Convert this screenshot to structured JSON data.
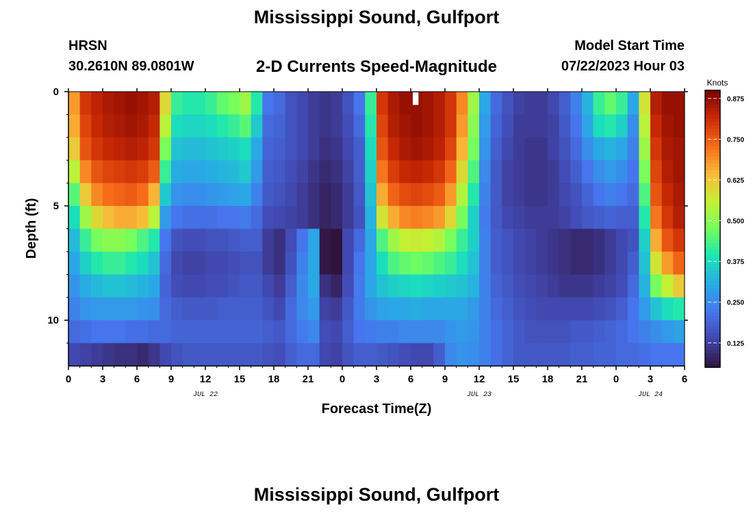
{
  "header": {
    "title": "Mississippi Sound, Gulfport",
    "station": "HRSN",
    "coordinates": "30.2610N  89.0801W",
    "subtitle": "2-D Currents Speed-Magnitude",
    "model_start_label": "Model Start Time",
    "model_start_value": "07/22/2023 Hour 03"
  },
  "footer": {
    "title": "Mississippi Sound, Gulfport"
  },
  "chart_data": {
    "type": "heatmap",
    "title": "2-D Currents Speed-Magnitude",
    "xlabel": "Forecast Time(Z)",
    "ylabel": "Depth (ft)",
    "x_unit": "forecast hour",
    "xlim": [
      0,
      54
    ],
    "ylim": [
      0,
      12
    ],
    "y_inverted": true,
    "x_ticks": [
      0,
      3,
      6,
      9,
      12,
      15,
      18,
      21,
      24,
      27,
      30,
      33,
      36,
      39,
      42,
      45,
      48,
      51,
      54
    ],
    "x_tick_labels": [
      "0",
      "3",
      "6",
      "9",
      "12",
      "15",
      "18",
      "21",
      "0",
      "3",
      "6",
      "9",
      "12",
      "15",
      "18",
      "21",
      "0",
      "3",
      "6"
    ],
    "date_labels": [
      {
        "x": 12,
        "text": "JUL 22"
      },
      {
        "x": 36,
        "text": "JUL 23"
      },
      {
        "x": 51,
        "text": "JUL 24"
      }
    ],
    "y_ticks": [
      0,
      5,
      10
    ],
    "y_tick_labels": [
      "0",
      "5",
      "10"
    ],
    "colorbar": {
      "label": "Knots",
      "range": [
        0.05,
        0.9
      ],
      "ticks": [
        0.125,
        0.25,
        0.375,
        0.5,
        0.625,
        0.75,
        0.875
      ],
      "tick_labels": [
        "0.125",
        "0.250",
        "0.375",
        "0.500",
        "0.625",
        "0.750",
        "0.875"
      ]
    },
    "depth_rows": [
      0.5,
      1.5,
      2.5,
      3.5,
      4.5,
      5.5,
      6.5,
      7.5,
      8.5,
      9.5,
      10.5,
      11.5
    ],
    "hours": [
      0,
      1,
      2,
      3,
      4,
      5,
      6,
      7,
      8,
      9,
      10,
      11,
      12,
      13,
      14,
      15,
      16,
      17,
      18,
      19,
      20,
      21,
      22,
      23,
      24,
      25,
      26,
      27,
      28,
      29,
      30,
      31,
      32,
      33,
      34,
      35,
      36,
      37,
      38,
      39,
      40,
      41,
      42,
      43,
      44,
      45,
      46,
      47,
      48,
      49,
      50,
      51,
      52,
      53
    ],
    "values": [
      [
        0.68,
        0.8,
        0.83,
        0.85,
        0.86,
        0.87,
        0.86,
        0.84,
        0.6,
        0.42,
        0.4,
        0.4,
        0.42,
        0.46,
        0.48,
        0.52,
        0.4,
        0.22,
        0.2,
        0.16,
        0.14,
        0.12,
        0.11,
        0.12,
        0.16,
        0.22,
        0.42,
        0.8,
        0.85,
        0.87,
        0.87,
        0.86,
        0.84,
        0.8,
        0.7,
        0.52,
        0.3,
        0.2,
        0.16,
        0.13,
        0.12,
        0.12,
        0.14,
        0.18,
        0.24,
        0.32,
        0.42,
        0.46,
        0.42,
        0.3,
        0.58,
        0.84,
        0.87,
        0.87
      ],
      [
        0.66,
        0.78,
        0.82,
        0.84,
        0.85,
        0.86,
        0.85,
        0.82,
        0.55,
        0.38,
        0.37,
        0.37,
        0.38,
        0.4,
        0.42,
        0.45,
        0.35,
        0.2,
        0.19,
        0.16,
        0.14,
        0.12,
        0.11,
        0.12,
        0.15,
        0.2,
        0.4,
        0.78,
        0.84,
        0.86,
        0.87,
        0.86,
        0.84,
        0.8,
        0.68,
        0.5,
        0.28,
        0.19,
        0.15,
        0.12,
        0.12,
        0.12,
        0.13,
        0.17,
        0.22,
        0.3,
        0.38,
        0.4,
        0.36,
        0.26,
        0.55,
        0.82,
        0.86,
        0.87
      ],
      [
        0.62,
        0.76,
        0.8,
        0.82,
        0.83,
        0.84,
        0.83,
        0.8,
        0.48,
        0.34,
        0.33,
        0.33,
        0.34,
        0.35,
        0.36,
        0.38,
        0.3,
        0.19,
        0.18,
        0.16,
        0.14,
        0.12,
        0.1,
        0.11,
        0.14,
        0.18,
        0.38,
        0.76,
        0.82,
        0.85,
        0.86,
        0.85,
        0.83,
        0.78,
        0.65,
        0.48,
        0.27,
        0.18,
        0.14,
        0.12,
        0.11,
        0.11,
        0.13,
        0.16,
        0.2,
        0.26,
        0.3,
        0.32,
        0.3,
        0.24,
        0.52,
        0.8,
        0.85,
        0.86
      ],
      [
        0.55,
        0.7,
        0.76,
        0.78,
        0.79,
        0.8,
        0.79,
        0.75,
        0.42,
        0.31,
        0.3,
        0.3,
        0.31,
        0.32,
        0.33,
        0.35,
        0.28,
        0.18,
        0.17,
        0.15,
        0.13,
        0.11,
        0.09,
        0.1,
        0.13,
        0.18,
        0.36,
        0.72,
        0.79,
        0.82,
        0.83,
        0.82,
        0.8,
        0.74,
        0.6,
        0.44,
        0.25,
        0.17,
        0.13,
        0.12,
        0.11,
        0.11,
        0.12,
        0.15,
        0.18,
        0.22,
        0.26,
        0.28,
        0.26,
        0.22,
        0.48,
        0.78,
        0.84,
        0.86
      ],
      [
        0.45,
        0.62,
        0.7,
        0.73,
        0.74,
        0.75,
        0.73,
        0.65,
        0.35,
        0.27,
        0.26,
        0.26,
        0.27,
        0.28,
        0.29,
        0.3,
        0.24,
        0.17,
        0.16,
        0.14,
        0.12,
        0.1,
        0.08,
        0.09,
        0.12,
        0.17,
        0.34,
        0.66,
        0.74,
        0.77,
        0.78,
        0.77,
        0.75,
        0.68,
        0.54,
        0.4,
        0.24,
        0.17,
        0.13,
        0.12,
        0.11,
        0.11,
        0.12,
        0.14,
        0.16,
        0.19,
        0.22,
        0.24,
        0.22,
        0.2,
        0.44,
        0.76,
        0.82,
        0.85
      ],
      [
        0.38,
        0.52,
        0.6,
        0.64,
        0.66,
        0.66,
        0.64,
        0.55,
        0.28,
        0.22,
        0.21,
        0.21,
        0.21,
        0.22,
        0.22,
        0.23,
        0.2,
        0.15,
        0.14,
        0.13,
        0.12,
        0.1,
        0.08,
        0.09,
        0.12,
        0.16,
        0.32,
        0.58,
        0.66,
        0.7,
        0.71,
        0.7,
        0.68,
        0.6,
        0.48,
        0.36,
        0.23,
        0.17,
        0.14,
        0.13,
        0.12,
        0.12,
        0.12,
        0.13,
        0.15,
        0.17,
        0.18,
        0.19,
        0.18,
        0.18,
        0.4,
        0.72,
        0.8,
        0.84
      ],
      [
        0.33,
        0.42,
        0.48,
        0.5,
        0.5,
        0.48,
        0.44,
        0.4,
        0.22,
        0.16,
        0.15,
        0.15,
        0.16,
        0.16,
        0.17,
        0.18,
        0.18,
        0.12,
        0.1,
        0.15,
        0.22,
        0.3,
        0.06,
        0.03,
        0.14,
        0.2,
        0.3,
        0.44,
        0.52,
        0.56,
        0.57,
        0.56,
        0.54,
        0.48,
        0.42,
        0.36,
        0.24,
        0.18,
        0.16,
        0.14,
        0.13,
        0.12,
        0.11,
        0.1,
        0.09,
        0.09,
        0.1,
        0.12,
        0.14,
        0.16,
        0.36,
        0.66,
        0.76,
        0.8
      ],
      [
        0.3,
        0.36,
        0.4,
        0.42,
        0.42,
        0.4,
        0.38,
        0.34,
        0.2,
        0.14,
        0.13,
        0.13,
        0.14,
        0.14,
        0.15,
        0.16,
        0.16,
        0.12,
        0.1,
        0.16,
        0.24,
        0.3,
        0.06,
        0.03,
        0.14,
        0.22,
        0.3,
        0.38,
        0.44,
        0.46,
        0.47,
        0.46,
        0.44,
        0.42,
        0.38,
        0.34,
        0.24,
        0.18,
        0.16,
        0.14,
        0.13,
        0.12,
        0.11,
        0.1,
        0.09,
        0.09,
        0.1,
        0.12,
        0.14,
        0.18,
        0.34,
        0.58,
        0.68,
        0.74
      ],
      [
        0.27,
        0.31,
        0.33,
        0.34,
        0.34,
        0.33,
        0.32,
        0.3,
        0.19,
        0.15,
        0.14,
        0.14,
        0.15,
        0.15,
        0.16,
        0.17,
        0.17,
        0.14,
        0.12,
        0.18,
        0.25,
        0.3,
        0.1,
        0.08,
        0.15,
        0.23,
        0.3,
        0.34,
        0.36,
        0.37,
        0.38,
        0.37,
        0.36,
        0.35,
        0.34,
        0.32,
        0.24,
        0.19,
        0.17,
        0.15,
        0.14,
        0.13,
        0.12,
        0.11,
        0.11,
        0.11,
        0.12,
        0.13,
        0.15,
        0.2,
        0.32,
        0.48,
        0.56,
        0.62
      ],
      [
        0.24,
        0.27,
        0.28,
        0.28,
        0.28,
        0.28,
        0.27,
        0.26,
        0.2,
        0.18,
        0.17,
        0.17,
        0.17,
        0.18,
        0.18,
        0.18,
        0.18,
        0.16,
        0.14,
        0.2,
        0.25,
        0.28,
        0.13,
        0.12,
        0.17,
        0.23,
        0.27,
        0.29,
        0.3,
        0.3,
        0.31,
        0.3,
        0.3,
        0.3,
        0.3,
        0.28,
        0.24,
        0.2,
        0.18,
        0.16,
        0.15,
        0.14,
        0.14,
        0.14,
        0.14,
        0.14,
        0.15,
        0.16,
        0.18,
        0.22,
        0.28,
        0.34,
        0.38,
        0.4
      ],
      [
        0.2,
        0.21,
        0.22,
        0.22,
        0.22,
        0.21,
        0.21,
        0.2,
        0.2,
        0.19,
        0.19,
        0.19,
        0.19,
        0.19,
        0.19,
        0.19,
        0.19,
        0.18,
        0.17,
        0.2,
        0.23,
        0.25,
        0.15,
        0.14,
        0.18,
        0.22,
        0.23,
        0.24,
        0.24,
        0.25,
        0.25,
        0.25,
        0.25,
        0.27,
        0.28,
        0.27,
        0.24,
        0.21,
        0.19,
        0.17,
        0.16,
        0.16,
        0.16,
        0.16,
        0.17,
        0.17,
        0.18,
        0.19,
        0.2,
        0.22,
        0.24,
        0.26,
        0.28,
        0.29
      ],
      [
        0.14,
        0.13,
        0.12,
        0.11,
        0.1,
        0.1,
        0.09,
        0.11,
        0.14,
        0.16,
        0.17,
        0.17,
        0.17,
        0.17,
        0.17,
        0.17,
        0.17,
        0.16,
        0.15,
        0.18,
        0.2,
        0.2,
        0.14,
        0.13,
        0.16,
        0.18,
        0.18,
        0.17,
        0.16,
        0.15,
        0.14,
        0.14,
        0.18,
        0.25,
        0.27,
        0.26,
        0.24,
        0.21,
        0.19,
        0.17,
        0.17,
        0.17,
        0.17,
        0.17,
        0.18,
        0.18,
        0.19,
        0.19,
        0.2,
        0.2,
        0.21,
        0.22,
        0.22,
        0.22
      ]
    ],
    "missing_cells": [
      {
        "x": 30,
        "y": 0.5
      }
    ],
    "grid": false,
    "colormap": "turbo",
    "legend": "colorbar-right"
  }
}
